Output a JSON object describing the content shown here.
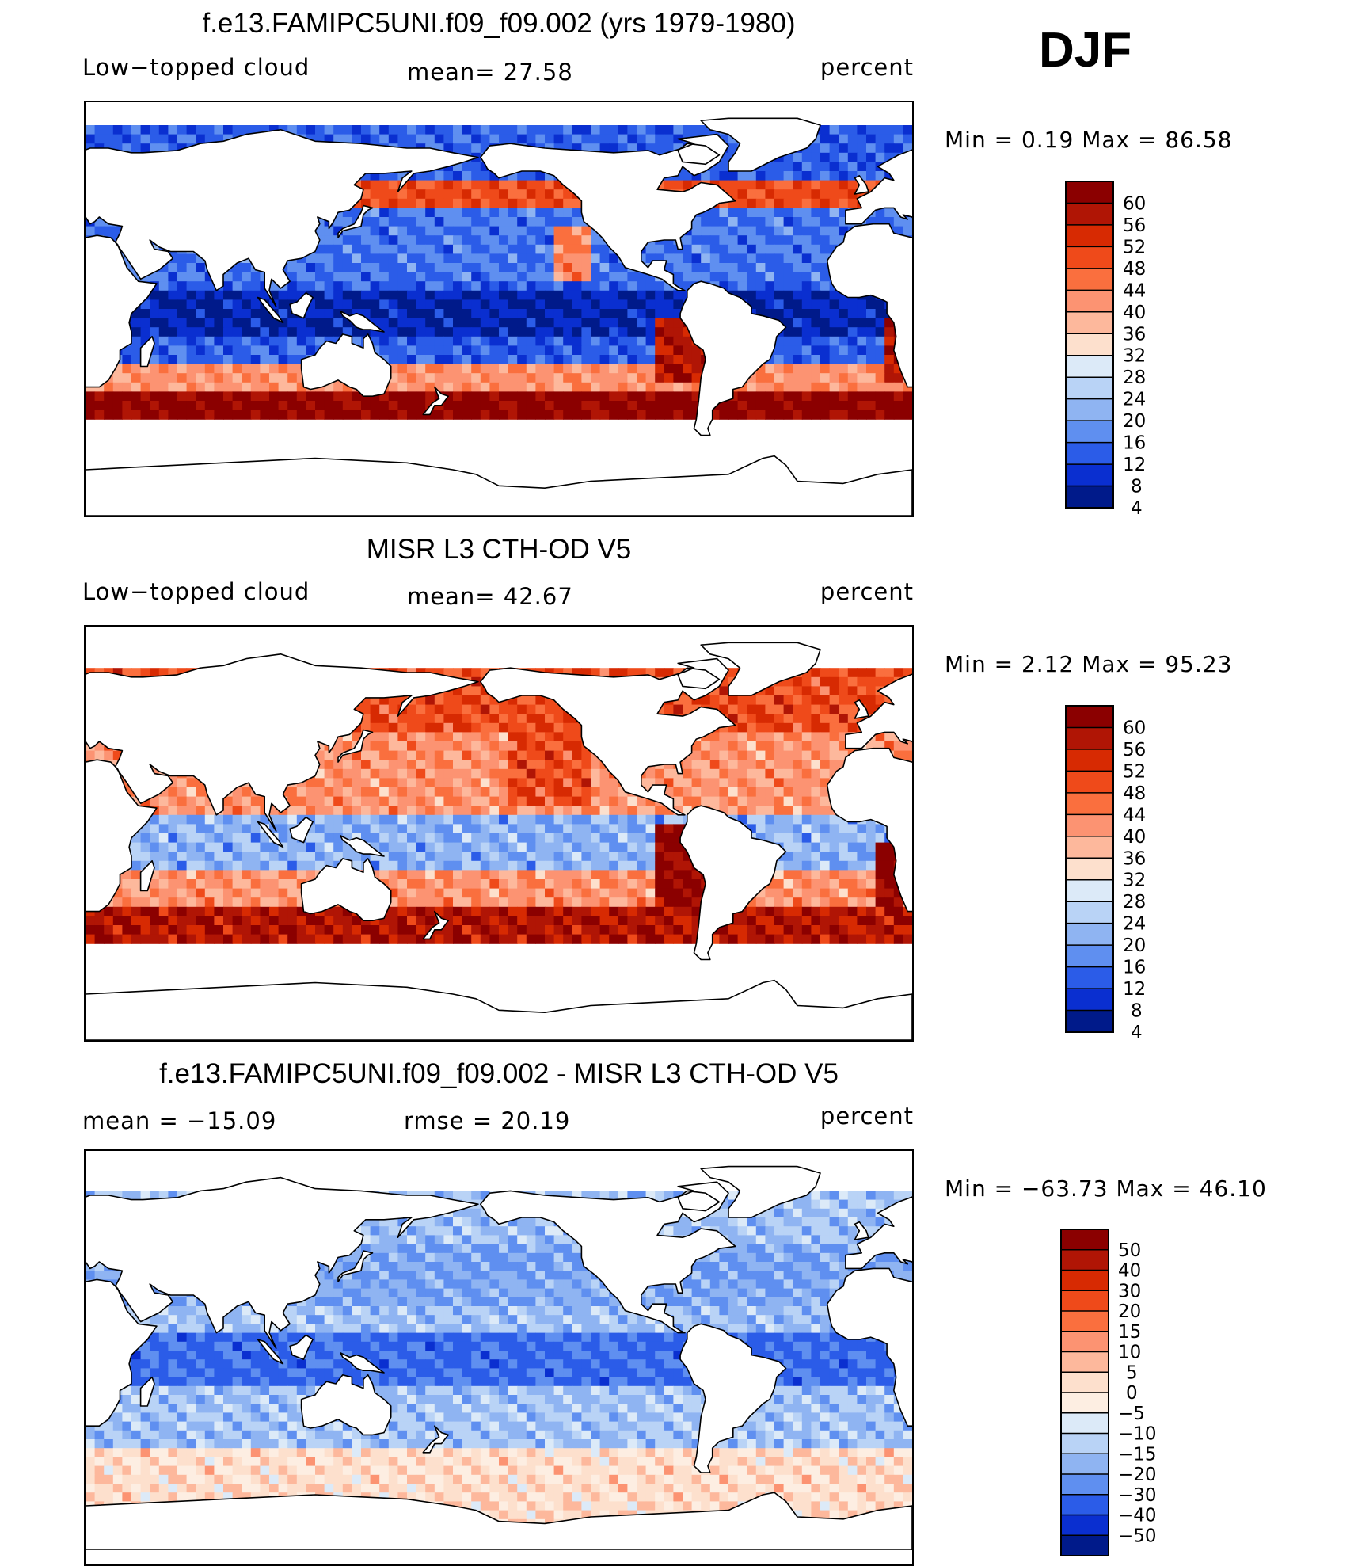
{
  "season": "DJF",
  "panels": [
    {
      "title": "f.e13.FAMIPC5UNI.f09_f09.002 (yrs 1979-1980)",
      "left_label": "Low−topped cloud",
      "center_label": "mean=   27.58",
      "right_label": "percent",
      "min_max": "Min  =     0.19  Max  =    86.58"
    },
    {
      "title": "MISR L3 CTH-OD V5",
      "left_label": "Low−topped cloud",
      "center_label": "mean=   42.67",
      "right_label": "percent",
      "min_max": "Min  =     2.12  Max  =    95.23"
    },
    {
      "title": "f.e13.FAMIPC5UNI.f09_f09.002 - MISR L3 CTH-OD V5",
      "left_label": "mean  =  −15.09",
      "center_label": "rmse  =    20.19",
      "right_label": "percent",
      "min_max": "Min  =  −63.73  Max  =    46.10"
    }
  ],
  "chart_data": [
    {
      "type": "heatmap",
      "title": "f.e13.FAMIPC5UNI.f09_f09.002 (yrs 1979-1980)",
      "variable": "Low−topped cloud",
      "units": "percent",
      "mean": 27.58,
      "min": 0.19,
      "max": 86.58,
      "colorbar_levels": [
        "60",
        "56",
        "52",
        "48",
        "44",
        "40",
        "36",
        "32",
        "28",
        "24",
        "20",
        "16",
        "12",
        "8",
        "4"
      ],
      "colors": [
        "#8b0000",
        "#b01505",
        "#d72a02",
        "#ef4a1a",
        "#fa6f3e",
        "#fc9372",
        "#fdb89c",
        "#fde0cd",
        "#dceaf8",
        "#b9d3f6",
        "#8fb4f2",
        "#5f8ff0",
        "#2b5ce8",
        "#0a2fd0",
        "#001a8a"
      ]
    },
    {
      "type": "heatmap",
      "title": "MISR L3 CTH-OD V5",
      "variable": "Low−topped cloud",
      "units": "percent",
      "mean": 42.67,
      "min": 2.12,
      "max": 95.23,
      "colorbar_levels": [
        "60",
        "56",
        "52",
        "48",
        "44",
        "40",
        "36",
        "32",
        "28",
        "24",
        "20",
        "16",
        "12",
        "8",
        "4"
      ],
      "colors": [
        "#8b0000",
        "#b01505",
        "#d72a02",
        "#ef4a1a",
        "#fa6f3e",
        "#fc9372",
        "#fdb89c",
        "#fde0cd",
        "#dceaf8",
        "#b9d3f6",
        "#8fb4f2",
        "#5f8ff0",
        "#2b5ce8",
        "#0a2fd0",
        "#001a8a"
      ]
    },
    {
      "type": "heatmap",
      "title": "f.e13.FAMIPC5UNI.f09_f09.002 - MISR L3 CTH-OD V5",
      "units": "percent",
      "mean": -15.09,
      "rmse": 20.19,
      "min": -63.73,
      "max": 46.1,
      "colorbar_levels": [
        "50",
        "40",
        "30",
        "20",
        "15",
        "10",
        "5",
        "0",
        "−5",
        "−10",
        "−15",
        "−20",
        "−30",
        "−40",
        "−50"
      ],
      "colors": [
        "#8b0000",
        "#b01505",
        "#d72a02",
        "#ef4a1a",
        "#fa6f3e",
        "#fc9372",
        "#fdb89c",
        "#fde0cd",
        "#fdeee2",
        "#dceaf8",
        "#b9d3f6",
        "#8fb4f2",
        "#5f8ff0",
        "#2b5ce8",
        "#0a2fd0",
        "#001a8a"
      ]
    }
  ]
}
